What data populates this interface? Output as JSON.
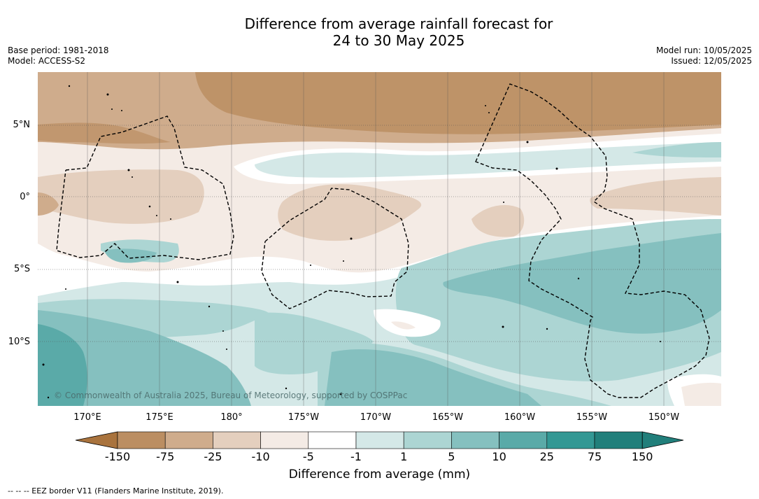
{
  "title": {
    "line1": "Difference from average rainfall forecast for",
    "line2": "24 to 30 May 2025"
  },
  "meta": {
    "base_period": "Base period: 1981-2018",
    "model": "Model: ACCESS-S2",
    "model_run": "Model run: 10/05/2025",
    "issued": "Issued: 12/05/2025"
  },
  "map": {
    "copyright": "© Commonwealth of Australia 2025, Bureau of Meteorology, supported by COSPPac",
    "lat_labels": [
      "5°N",
      "0°",
      "5°S",
      "10°S"
    ],
    "lon_labels": [
      "170°E",
      "175°E",
      "180°",
      "175°W",
      "170°W",
      "165°W",
      "160°W",
      "155°W",
      "150°W"
    ]
  },
  "colorbar": {
    "ticks": [
      "-150",
      "-75",
      "-25",
      "-10",
      "-5",
      "-1",
      "1",
      "5",
      "10",
      "25",
      "75",
      "150"
    ],
    "colors": [
      "#a9733d",
      "#bb8e62",
      "#cfac8c",
      "#e4cfbe",
      "#f4ebe5",
      "#ffffff",
      "#d4e8e7",
      "#acd5d3",
      "#85c0bf",
      "#5aaaa8",
      "#339894",
      "#217f7b"
    ],
    "label": "Difference from average (mm)"
  },
  "footer": "--  --  -- EEZ border V11 (Flanders Marine Institute, 2019)."
}
